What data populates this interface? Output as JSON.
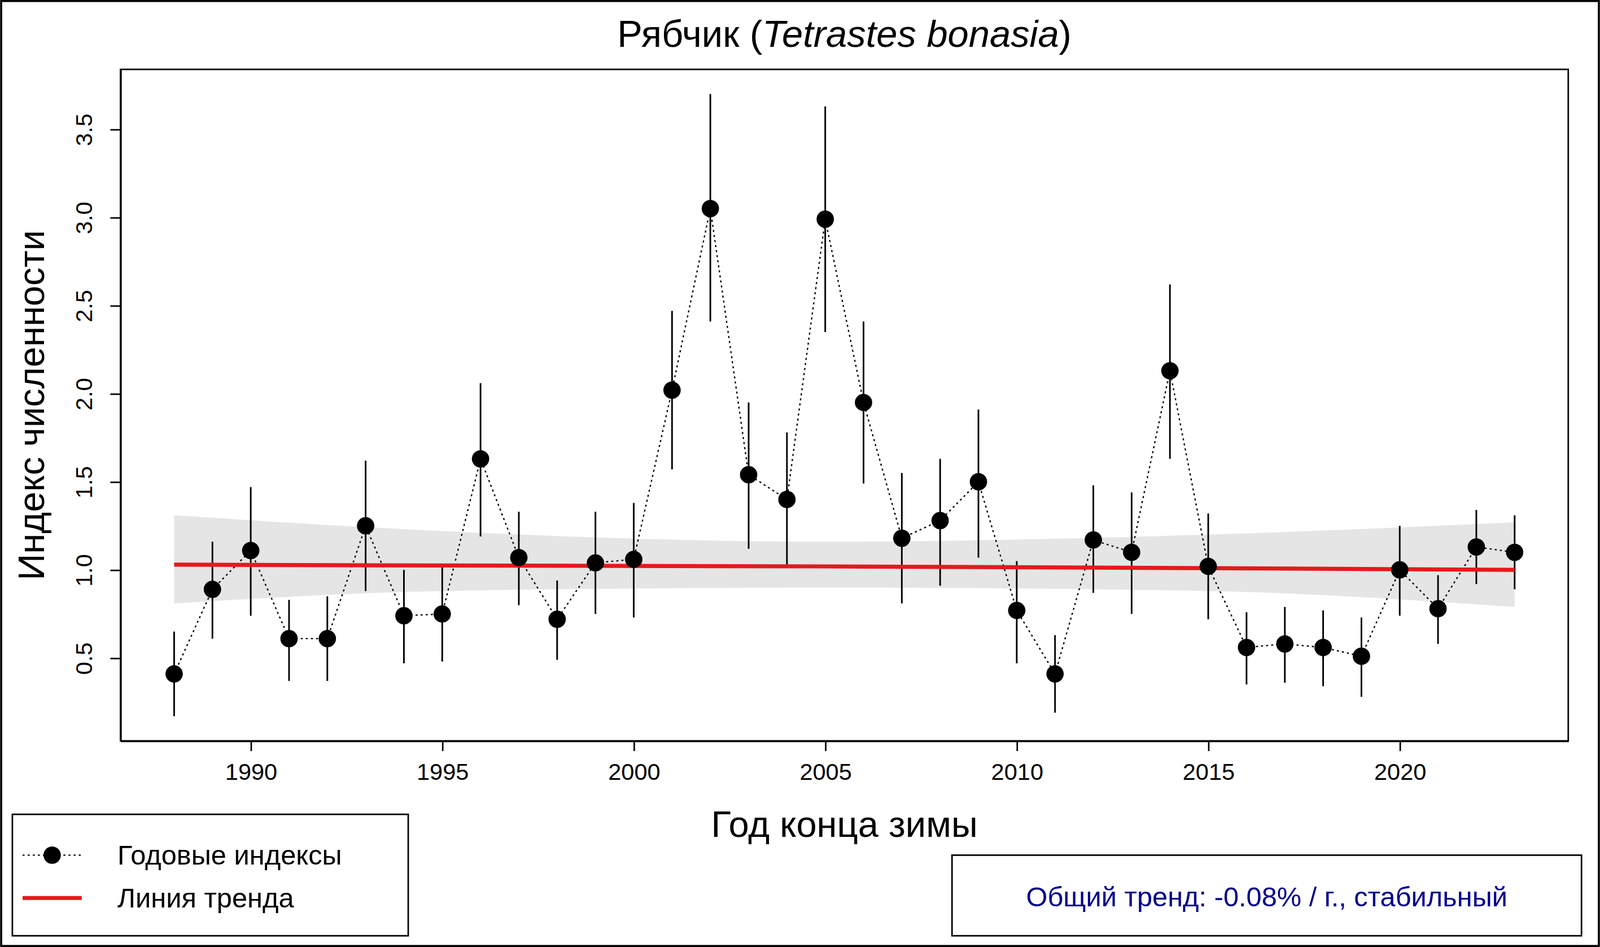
{
  "chart_data": {
    "type": "line",
    "title": "Рябчик (Tetrastes bonasia)",
    "x_label": "Год конца зимы",
    "y_label": "Индекс численности",
    "annotation": "Общий тренд: -0.08% / г., стабильный",
    "legend": "bottom-left",
    "x": [
      1988,
      1989,
      1990,
      1991,
      1992,
      1993,
      1994,
      1995,
      1996,
      1997,
      1998,
      1999,
      2000,
      2001,
      2002,
      2003,
      2004,
      2005,
      2006,
      2007,
      2008,
      2009,
      2010,
      2011,
      2012,
      2013,
      2014,
      2015,
      2016,
      2017,
      2018,
      2019,
      2020,
      2021,
      2022,
      2023
    ],
    "xlim": [
      1986.6,
      2024.4
    ],
    "xticks": [
      1990,
      1995,
      2000,
      2005,
      2010,
      2015,
      2020
    ],
    "ylim": [
      0.03,
      3.84
    ],
    "yticks": [
      0.5,
      {
        "value": 1,
        "label": "1.0"
      },
      1.5,
      {
        "value": 2,
        "label": "2.0"
      },
      2.5,
      {
        "value": 3,
        "label": "3.0"
      },
      3.5
    ],
    "series": [
      {
        "name": "Годовые индексы",
        "color": "#000000",
        "marker": "circle",
        "line_style": "dotted",
        "values": [
          0.41,
          0.89,
          1.11,
          0.61,
          0.61,
          1.25,
          0.74,
          0.75,
          1.63,
          1.07,
          0.72,
          1.04,
          1.06,
          2.02,
          3.05,
          1.54,
          1.4,
          2.99,
          1.95,
          1.18,
          1.28,
          1.5,
          0.77,
          0.41,
          1.17,
          1.1,
          2.13,
          1.02,
          0.56,
          0.58,
          0.56,
          0.51,
          1.0,
          0.78,
          1.13,
          1.1
        ],
        "lower": [
          0.17,
          0.61,
          0.74,
          0.37,
          0.37,
          0.88,
          0.47,
          0.48,
          1.19,
          0.8,
          0.49,
          0.75,
          0.73,
          1.57,
          2.41,
          1.12,
          1.02,
          2.35,
          1.49,
          0.81,
          0.91,
          1.07,
          0.47,
          0.19,
          0.87,
          0.75,
          1.63,
          0.72,
          0.35,
          0.36,
          0.34,
          0.28,
          0.74,
          0.58,
          0.92,
          0.89
        ],
        "upper": [
          0.65,
          1.16,
          1.47,
          0.83,
          0.85,
          1.62,
          1.0,
          1.02,
          2.06,
          1.33,
          0.94,
          1.33,
          1.38,
          2.47,
          3.7,
          1.95,
          1.78,
          3.63,
          2.41,
          1.55,
          1.63,
          1.91,
          1.05,
          0.63,
          1.48,
          1.44,
          2.62,
          1.32,
          0.76,
          0.79,
          0.77,
          0.73,
          1.25,
          0.97,
          1.34,
          1.31
        ]
      },
      {
        "name": "Линия тренда",
        "type": "line",
        "color": "#e41a1c",
        "marker": "none",
        "line_style": "solid",
        "x": [
          1988,
          1995,
          2005,
          2015,
          2023
        ],
        "values": [
          1.03,
          1.025,
          1.02,
          1.01,
          1.0
        ],
        "lower": [
          0.81,
          0.88,
          0.9,
          0.88,
          0.79
        ],
        "upper": [
          1.31,
          1.22,
          1.16,
          1.2,
          1.27
        ]
      }
    ]
  }
}
